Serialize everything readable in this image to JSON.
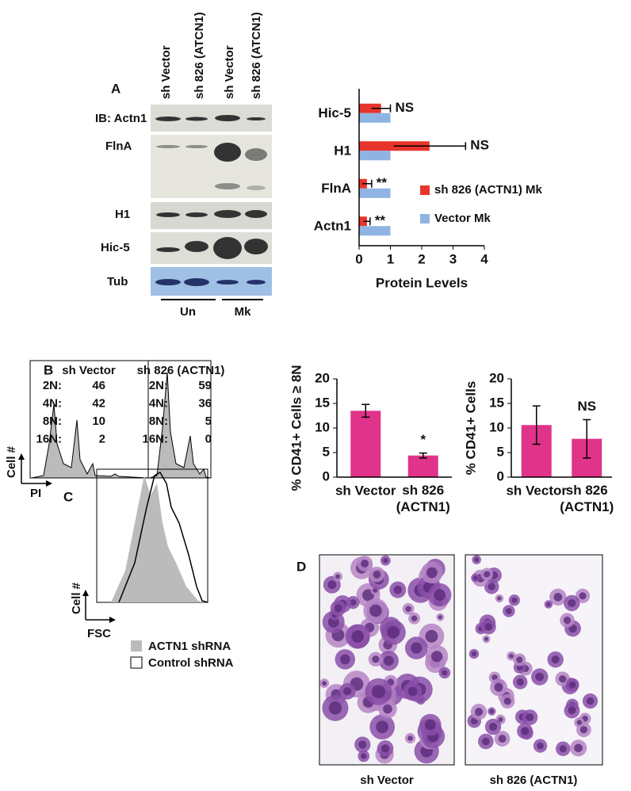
{
  "panel_labels": [
    "A",
    "B",
    "C",
    "D"
  ],
  "blot": {
    "lanes": [
      "sh Vector",
      "sh 826 (ATCN1)",
      "sh Vector",
      "sh 826 (ATCN1)"
    ],
    "rows": [
      "IB: Actn1",
      "FlnA",
      "H1",
      "Hic-5",
      "Tub"
    ],
    "groups": [
      "Un",
      "Mk"
    ]
  },
  "flow_b": {
    "y_label": "Cell #",
    "x_label": "PI",
    "panels": [
      {
        "title": "sh Vector",
        "stats": [
          {
            "label": "2N:",
            "value": 46
          },
          {
            "label": "4N:",
            "value": 42
          },
          {
            "label": "8N:",
            "value": 10
          },
          {
            "label": "16N:",
            "value": 2
          }
        ]
      },
      {
        "title": "sh 826 (ACTN1)",
        "stats": [
          {
            "label": "2N:",
            "value": 59
          },
          {
            "label": "4N:",
            "value": 36
          },
          {
            "label": "8N:",
            "value": 5
          },
          {
            "label": "16N:",
            "value": 0
          }
        ]
      }
    ]
  },
  "flow_c": {
    "y_label": "Cell #",
    "x_label": "FSC",
    "legend": [
      "ACTN1 shRNA",
      "Control shRNA"
    ]
  },
  "micrographs": [
    "sh Vector",
    "sh 826 (ACTN1)"
  ],
  "chart_data": [
    {
      "type": "hbar",
      "x_label": "Protein Levels",
      "categories": [
        "Hic-5",
        "H1",
        "FlnA",
        "Actn1"
      ],
      "series": [
        {
          "name": "sh 826 (ACTN1) Mk",
          "color": "#e8352b",
          "values": [
            0.7,
            2.25,
            0.25,
            0.25
          ],
          "errors": [
            0.3,
            1.15,
            0.15,
            0.1
          ]
        },
        {
          "name": "Vector Mk",
          "color": "#8fb4e3",
          "values": [
            1,
            1,
            1,
            1
          ]
        }
      ],
      "annotations": [
        "NS",
        "NS",
        "**",
        "**"
      ],
      "xlim": [
        0,
        4
      ],
      "xticks": [
        0,
        1,
        2,
        3,
        4
      ]
    },
    {
      "type": "bar",
      "y_label": "% CD41+ Cells ≥ 8N",
      "categories": [
        "sh Vector",
        "sh 826 (ACTN1)"
      ],
      "series": [
        {
          "color": "#e0338a",
          "values": [
            13.5,
            4.4
          ],
          "errors": [
            1.3,
            0.5
          ]
        }
      ],
      "annotations": [
        null,
        "*"
      ],
      "ylim": [
        0,
        20
      ],
      "yticks": [
        0,
        5,
        10,
        15,
        20
      ]
    },
    {
      "type": "bar",
      "y_label": "% CD41+ Cells",
      "categories": [
        "sh Vector",
        "sh 826 (ACTN1)"
      ],
      "series": [
        {
          "color": "#e0338a",
          "values": [
            10.6,
            7.8
          ],
          "errors": [
            3.9,
            3.9
          ]
        }
      ],
      "annotations": [
        null,
        "NS"
      ],
      "ylim": [
        0,
        20
      ],
      "yticks": [
        0,
        5,
        10,
        15,
        20
      ]
    }
  ]
}
